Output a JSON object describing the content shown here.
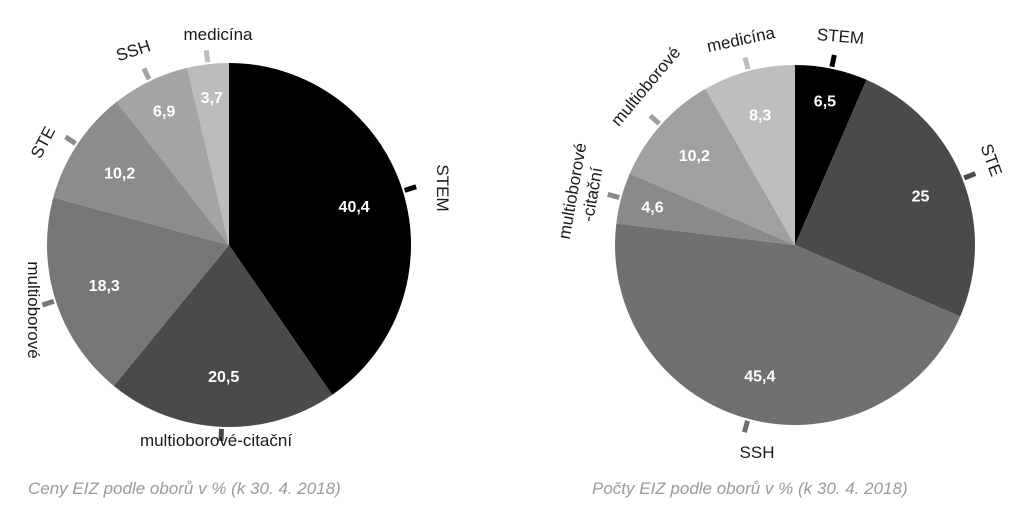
{
  "chart_data": [
    {
      "type": "pie",
      "title": "Ceny EIZ podle oborů v % (k 30. 4. 2018)",
      "slices": [
        {
          "label": "STEM",
          "value": 40.4,
          "value_text": "40,4",
          "color": "#000000"
        },
        {
          "label": "multioborové-citační",
          "value": 20.5,
          "value_text": "20,5",
          "color": "#4a4a4a"
        },
        {
          "label": "multioborové",
          "value": 18.3,
          "value_text": "18,3",
          "color": "#767676"
        },
        {
          "label": "STE",
          "value": 10.2,
          "value_text": "10,2",
          "color": "#8c8c8c"
        },
        {
          "label": "SSH",
          "value": 6.9,
          "value_text": "6,9",
          "color": "#a4a4a4"
        },
        {
          "label": "medicína",
          "value": 3.7,
          "value_text": "3,7",
          "color": "#bcbcbc"
        }
      ]
    },
    {
      "type": "pie",
      "title": "Počty EIZ podle oborů v % (k 30. 4. 2018)",
      "slices": [
        {
          "label": "STEM",
          "value": 6.5,
          "value_text": "6,5",
          "color": "#000000"
        },
        {
          "label": "STE",
          "value": 25,
          "value_text": "25",
          "color": "#4a4a4a"
        },
        {
          "label": "SSH",
          "value": 45.4,
          "value_text": "45,4",
          "color": "#707070"
        },
        {
          "label": "multioborové -citační",
          "value": 4.6,
          "value_text": "4,6",
          "color": "#8a8a8a"
        },
        {
          "label": "multioborové",
          "value": 10.2,
          "value_text": "10,2",
          "color": "#a0a0a0"
        },
        {
          "label": "medicína",
          "value": 8.3,
          "value_text": "8,3",
          "color": "#bebebe"
        }
      ]
    }
  ]
}
